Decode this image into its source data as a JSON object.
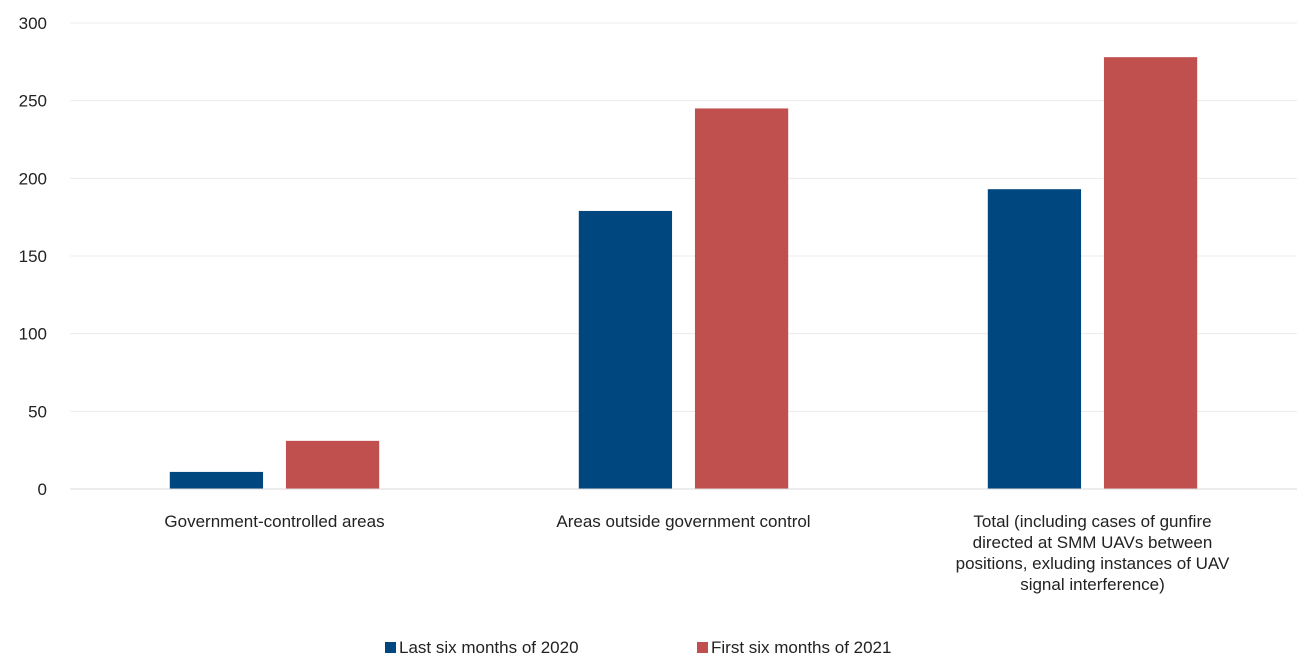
{
  "chart_data": {
    "type": "bar",
    "categories": [
      [
        "Government-controlled areas"
      ],
      [
        "Areas outside government control"
      ],
      [
        "Total (including cases of gunfire",
        "directed at SMM UAVs between",
        "positions, exluding instances of UAV",
        "signal interference)"
      ]
    ],
    "series": [
      {
        "name": "Last six months of 2020",
        "values": [
          11,
          179,
          193
        ],
        "color": "#00467F"
      },
      {
        "name": "First six months of 2021",
        "values": [
          31,
          245,
          278
        ],
        "color": "#C0504D"
      }
    ],
    "ylim": [
      0,
      300
    ],
    "yticks": [
      0,
      50,
      100,
      150,
      200,
      250,
      300
    ],
    "grid": true,
    "legend_position": "bottom"
  }
}
